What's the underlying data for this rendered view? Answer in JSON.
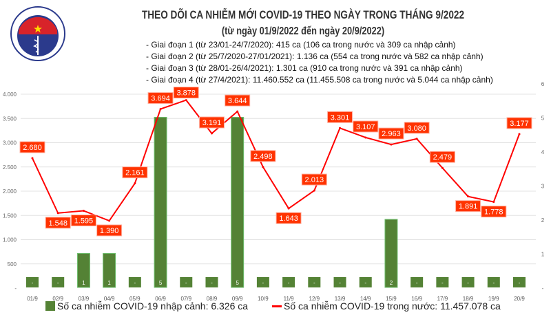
{
  "header": {
    "logo_text": "BỘ Y TẾ MINISTRY OF HEALTH",
    "title": "THEO DÕI CA NHIỄM MỚI COVID-19 THEO NGÀY TRONG THÁNG 9/2022",
    "subtitle": "(từ ngày 01/9/2022 đến ngày 20/9/2022)",
    "phases": [
      "- Giai đoạn 1 (từ 23/01-24/7/2020): 415 ca (106 ca trong nước và 309 ca nhập cảnh)",
      "- Giai đoạn 2 (từ 25/7/2020-27/01/2021): 1.136 ca (554 ca trong nước và 582 ca nhập cảnh)",
      "- Giai đoạn 3 (từ 28/01-26/4/2021): 1.301 ca (910 ca trong nước và 391 ca nhập cảnh)",
      "- Giai đoạn 4 (từ 27/4/2021): 11.460.552 ca (11.455.508 ca trong nước và 5.044 ca nhập cảnh)"
    ]
  },
  "chart_data": {
    "type": "bar+line",
    "categories": [
      "01/9",
      "02/9",
      "03/9",
      "04/9",
      "05/9",
      "06/9",
      "07/9",
      "08/9",
      "09/9",
      "10/9",
      "11/9",
      "12/9",
      "13/9",
      "14/9",
      "15/9",
      "16/9",
      "17/9",
      "18/9",
      "19/9",
      "20/9"
    ],
    "series": [
      {
        "name": "Số ca nhiễm COVID-19 nhập cảnh: 6.326 ca",
        "type": "bar",
        "axis": "right",
        "color": "#548235",
        "values": [
          0,
          0,
          1,
          1,
          0,
          5,
          0,
          0,
          5,
          0,
          0,
          0,
          0,
          0,
          2,
          0,
          0,
          0,
          0,
          0
        ],
        "labels": [
          "-",
          "-",
          "1",
          "1",
          "-",
          "5",
          "-",
          "-",
          "5",
          "-",
          "-",
          "-",
          "-",
          "-",
          "2",
          "-",
          "-",
          "-",
          "-",
          "-"
        ]
      },
      {
        "name": "Số ca nhiễm COVID-19 trong nước: 11.457.078 ca",
        "type": "line",
        "axis": "left",
        "color": "#ff0000",
        "values": [
          2680,
          1548,
          1595,
          1390,
          2161,
          3694,
          3878,
          3191,
          3644,
          2498,
          1643,
          2013,
          3301,
          3107,
          2963,
          3080,
          2479,
          1891,
          1778,
          3177
        ],
        "labels": [
          "2.680",
          "1.548",
          "1.595",
          "1.390",
          "2.161",
          "3.694",
          "3.878",
          "3.191",
          "3.644",
          "2.498",
          "1.643",
          "2.013",
          "3.301",
          "3.107",
          "2.963",
          "3.080",
          "2.479",
          "1.891",
          "1.778",
          "3.177"
        ]
      }
    ],
    "y_left": {
      "range": [
        0,
        4000
      ],
      "ticks": [
        "-",
        "500",
        "1.000",
        "1.500",
        "2.000",
        "2.500",
        "3.000",
        "3.500",
        "4.000"
      ]
    },
    "y_right": {
      "range": [
        0,
        6
      ],
      "ticks": [
        "-",
        "1",
        "2",
        "3",
        "4",
        "5",
        "6"
      ]
    },
    "grid": true,
    "legend": "bottom",
    "label_box_color": "#ff3300"
  }
}
